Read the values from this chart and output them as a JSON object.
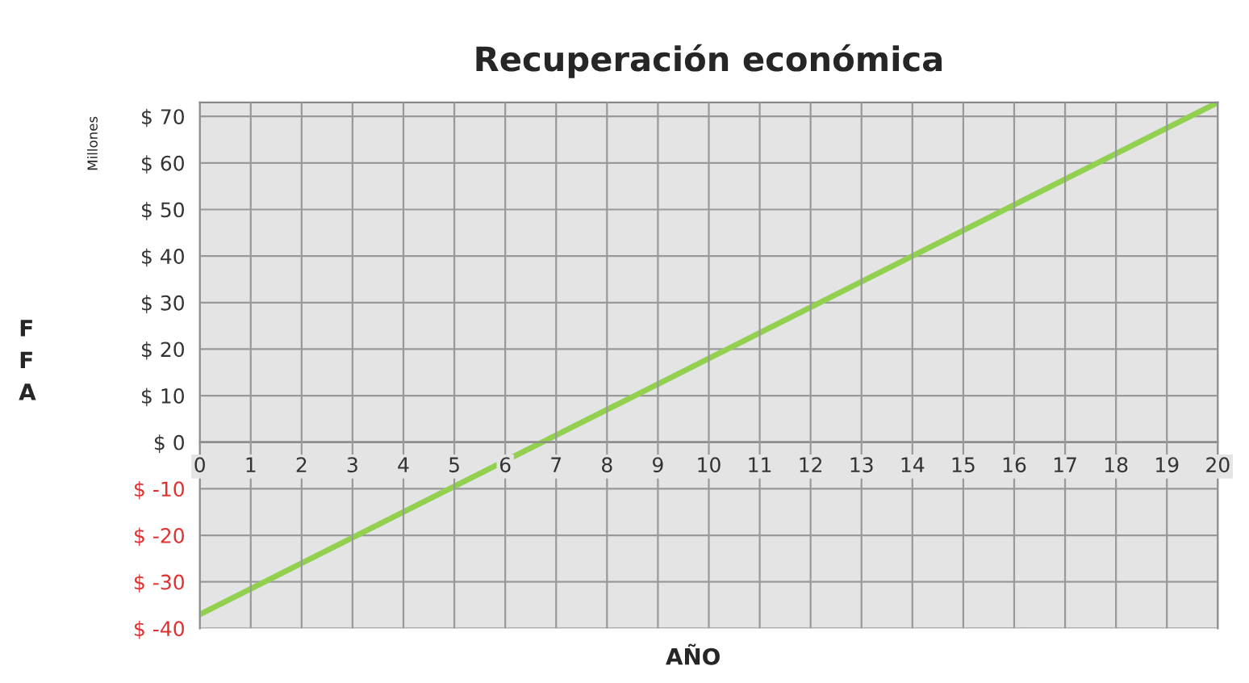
{
  "chart_data": {
    "type": "line",
    "title": "Recuperación económica",
    "xlabel": "AÑO",
    "ylabel": "FFA",
    "annotations": [
      "Millones"
    ],
    "x": [
      0,
      20
    ],
    "series": [
      {
        "color": "#92d050",
        "values": [
          -37,
          73
        ]
      }
    ],
    "xlim": [
      0,
      20
    ],
    "xticks": [
      0,
      1,
      2,
      3,
      4,
      5,
      6,
      7,
      8,
      9,
      10,
      11,
      12,
      13,
      14,
      15,
      16,
      17,
      18,
      19,
      20
    ],
    "ylim": [
      -40,
      73
    ],
    "yticks": [
      {
        "value": -40,
        "label": "$ -40"
      },
      {
        "value": -30,
        "label": "$ -30"
      },
      {
        "value": -20,
        "label": "$ -20"
      },
      {
        "value": -10,
        "label": "$ -10"
      },
      {
        "value": 0,
        "label": "$ 0"
      },
      {
        "value": 10,
        "label": "$ 10"
      },
      {
        "value": 20,
        "label": "$ 20"
      },
      {
        "value": 30,
        "label": "$ 30"
      },
      {
        "value": 40,
        "label": "$ 40"
      },
      {
        "value": 50,
        "label": "$ 50"
      },
      {
        "value": 60,
        "label": "$ 60"
      },
      {
        "value": 70,
        "label": "$ 70"
      }
    ],
    "grid": true,
    "legend": false
  }
}
